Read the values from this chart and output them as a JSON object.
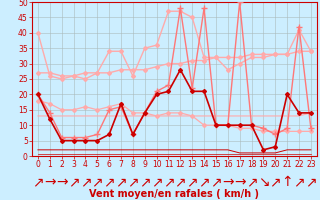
{
  "background_color": "#cceeff",
  "grid_color": "#aabbbb",
  "xlabel": "Vent moyen/en rafales ( km/h )",
  "xlabel_color": "#cc0000",
  "xlim": [
    -0.5,
    23.5
  ],
  "ylim": [
    0,
    50
  ],
  "yticks": [
    0,
    5,
    10,
    15,
    20,
    25,
    30,
    35,
    40,
    45,
    50
  ],
  "xticks": [
    0,
    1,
    2,
    3,
    4,
    5,
    6,
    7,
    8,
    9,
    10,
    11,
    12,
    13,
    14,
    15,
    16,
    17,
    18,
    19,
    20,
    21,
    22,
    23
  ],
  "series": [
    {
      "x": [
        0,
        1,
        2,
        3,
        4,
        5,
        6,
        7,
        8,
        9,
        10,
        11,
        12,
        13,
        14,
        15,
        16,
        17,
        18,
        19,
        20,
        21,
        22,
        23
      ],
      "y": [
        40,
        26,
        25,
        26,
        25,
        27,
        34,
        34,
        26,
        35,
        36,
        47,
        47,
        45,
        32,
        32,
        28,
        30,
        32,
        32,
        33,
        33,
        41,
        34
      ],
      "color": "#ffaaaa",
      "lw": 1.0,
      "marker": "D",
      "ms": 2.0,
      "zorder": 3
    },
    {
      "x": [
        0,
        1,
        2,
        3,
        4,
        5,
        6,
        7,
        8,
        9,
        10,
        11,
        12,
        13,
        14,
        15,
        16,
        17,
        18,
        19,
        20,
        21,
        22,
        23
      ],
      "y": [
        27,
        27,
        26,
        26,
        27,
        27,
        27,
        28,
        28,
        28,
        29,
        30,
        30,
        31,
        31,
        32,
        32,
        32,
        33,
        33,
        33,
        33,
        34,
        34
      ],
      "color": "#ffaaaa",
      "lw": 1.0,
      "marker": "D",
      "ms": 2.0,
      "zorder": 3
    },
    {
      "x": [
        0,
        1,
        2,
        3,
        4,
        5,
        6,
        7,
        8,
        9,
        10,
        11,
        12,
        13,
        14,
        15,
        16,
        17,
        18,
        19,
        20,
        21,
        22,
        23
      ],
      "y": [
        13,
        13,
        13,
        13,
        13,
        13,
        13,
        13,
        13,
        13,
        13,
        13,
        13,
        13,
        13,
        13,
        13,
        13,
        13,
        13,
        13,
        13,
        13,
        14
      ],
      "color": "#ffaaaa",
      "lw": 0.8,
      "marker": null,
      "ms": 0,
      "zorder": 2
    },
    {
      "x": [
        0,
        1,
        2,
        3,
        4,
        5,
        6,
        7,
        8,
        9,
        10,
        11,
        12,
        13,
        14,
        15,
        16,
        17,
        18,
        19,
        20,
        21,
        22,
        23
      ],
      "y": [
        18,
        17,
        15,
        15,
        16,
        15,
        16,
        17,
        14,
        14,
        13,
        14,
        14,
        13,
        10,
        10,
        10,
        9,
        9,
        8,
        8,
        8,
        8,
        8
      ],
      "color": "#ffaaaa",
      "lw": 0.9,
      "marker": "D",
      "ms": 2.0,
      "zorder": 3
    },
    {
      "x": [
        0,
        1,
        2,
        3,
        4,
        5,
        6,
        7,
        8,
        9,
        10,
        11,
        12,
        13,
        14,
        15,
        16,
        17,
        18,
        19,
        20,
        21,
        22,
        23
      ],
      "y": [
        20,
        14,
        6,
        6,
        6,
        7,
        15,
        16,
        7,
        14,
        21,
        23,
        48,
        22,
        48,
        10,
        10,
        50,
        10,
        9,
        7,
        9,
        42,
        9
      ],
      "color": "#ff7777",
      "lw": 1.0,
      "marker": "+",
      "ms": 4,
      "zorder": 4
    },
    {
      "x": [
        0,
        1,
        2,
        3,
        4,
        5,
        6,
        7,
        8,
        9,
        10,
        11,
        12,
        13,
        14,
        15,
        16,
        17,
        18,
        19,
        20,
        21,
        22,
        23
      ],
      "y": [
        20,
        12,
        5,
        5,
        5,
        5,
        7,
        17,
        7,
        14,
        20,
        21,
        28,
        21,
        21,
        10,
        10,
        10,
        10,
        2,
        3,
        20,
        14,
        14
      ],
      "color": "#cc0000",
      "lw": 1.2,
      "marker": "D",
      "ms": 2.0,
      "zorder": 5
    },
    {
      "x": [
        0,
        1,
        2,
        3,
        4,
        5,
        6,
        7,
        8,
        9,
        10,
        11,
        12,
        13,
        14,
        15,
        16,
        17,
        18,
        19,
        20,
        21,
        22,
        23
      ],
      "y": [
        2,
        2,
        2,
        2,
        2,
        2,
        2,
        2,
        2,
        2,
        2,
        2,
        2,
        2,
        2,
        2,
        2,
        1,
        1,
        1,
        1,
        2,
        2,
        2
      ],
      "color": "#cc0000",
      "lw": 0.7,
      "marker": null,
      "ms": 0,
      "zorder": 2
    },
    {
      "x": [
        0,
        1,
        2,
        3,
        4,
        5,
        6,
        7,
        8,
        9,
        10,
        11,
        12,
        13,
        14,
        15,
        16,
        17,
        18,
        19,
        20,
        21,
        22,
        23
      ],
      "y": [
        0.5,
        0.5,
        0.5,
        0.5,
        0.5,
        0.5,
        0.5,
        0.5,
        0.5,
        0.5,
        0.5,
        0.5,
        0.5,
        0.5,
        0.5,
        0.5,
        0.5,
        0.5,
        0.5,
        0.5,
        0.5,
        0.5,
        0.5,
        0.5
      ],
      "color": "#cc0000",
      "lw": 0.5,
      "marker": null,
      "ms": 0,
      "zorder": 2
    }
  ],
  "arrow_labels": [
    "↗",
    "→",
    "→",
    "↗",
    "↗",
    "↗",
    "↗",
    "↗",
    "↗",
    "↗",
    "↗",
    "↗",
    "↗",
    "↗",
    "↗",
    "↗",
    "→",
    "→",
    "↗",
    "↘",
    "↗",
    "↑",
    "↗",
    "↗"
  ],
  "tick_fontsize": 5.5,
  "xlabel_fontsize": 7.0
}
